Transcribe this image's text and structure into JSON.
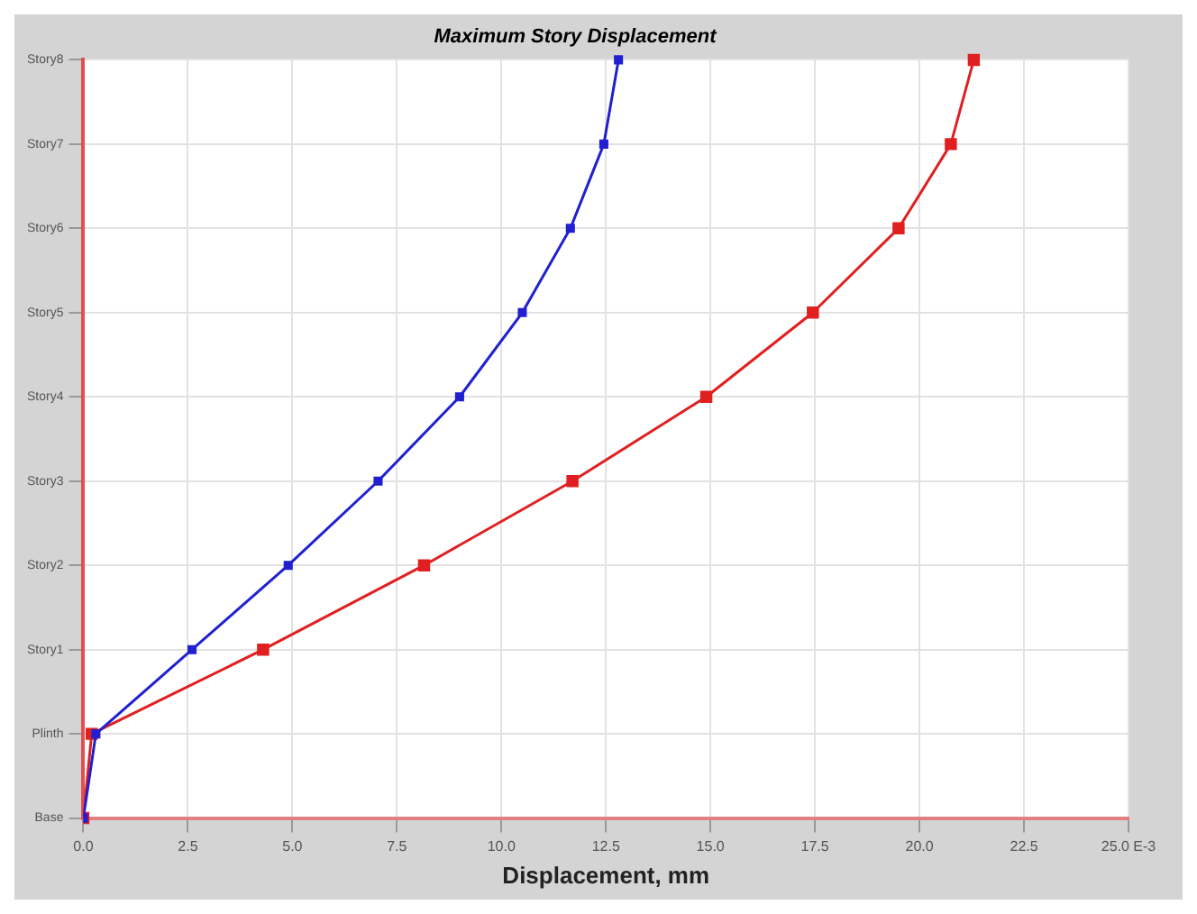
{
  "chart_data": {
    "type": "line",
    "orientation": "horizontal",
    "title": "Maximum Story Displacement",
    "xlabel": "Displacement, mm",
    "categories": [
      "Story8",
      "Story7",
      "Story6",
      "Story5",
      "Story4",
      "Story3",
      "Story2",
      "Story1",
      "Plinth",
      "Base"
    ],
    "series": [
      {
        "color": "#2020d0",
        "values": [
          12.8,
          12.45,
          11.65,
          10.5,
          9.0,
          7.05,
          4.9,
          2.6,
          0.3,
          0
        ]
      },
      {
        "color": "#e02020",
        "values": [
          21.3,
          20.75,
          19.5,
          17.45,
          14.9,
          11.7,
          8.15,
          4.3,
          0.2,
          0
        ]
      }
    ],
    "xlim": [
      0,
      25
    ],
    "xticks": [
      {
        "value": 0,
        "label": "0.0"
      },
      {
        "value": 2.5,
        "label": "2.5"
      },
      {
        "value": 5,
        "label": "5.0"
      },
      {
        "value": 7.5,
        "label": "7.5"
      },
      {
        "value": 10,
        "label": "10.0"
      },
      {
        "value": 12.5,
        "label": "12.5"
      },
      {
        "value": 15,
        "label": "15.0"
      },
      {
        "value": 17.5,
        "label": "17.5"
      },
      {
        "value": 20,
        "label": "20.0"
      },
      {
        "value": 22.5,
        "label": "22.5"
      },
      {
        "value": 25,
        "label": "25.0 E-3"
      }
    ],
    "grid": true,
    "legend": false,
    "marker": "square",
    "line_style": "solid"
  }
}
